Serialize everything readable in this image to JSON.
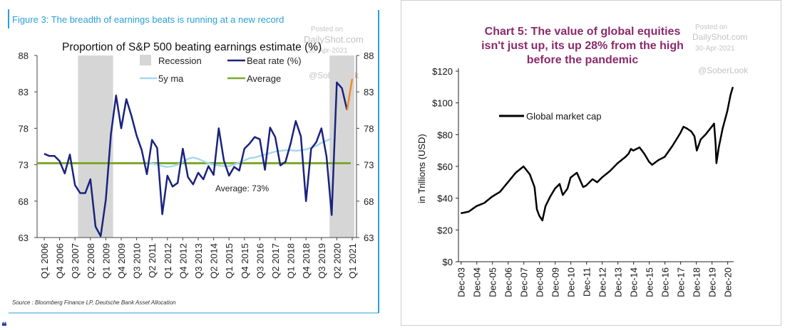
{
  "left": {
    "figure_title": "Figure 3: The breadth of earnings beats is running at a new record",
    "watermark_lines": [
      "Posted on",
      "DailyShot.com",
      "30-Apr-2021",
      "@SoberLook"
    ],
    "source": "Source : Bloomberg Finance LP, Deutsche Bank Asset Allocation",
    "annotation": "Average: 73%",
    "colors": {
      "beat": "#1a237e",
      "ma": "#a8d8ec",
      "avg": "#7caa2d",
      "recession": "#d6d6d6",
      "recent": "#f08a2c",
      "title": "#2aa0d8"
    }
  },
  "right": {
    "title_lines": [
      "Chart 5: The value of global equities",
      "isn't just up, its up 28% from the high",
      "before the pandemic"
    ],
    "watermark_lines": [
      "Posted on",
      "DailyShot.com",
      "30-Apr-2021",
      "@SoberLook"
    ],
    "colors": {
      "line": "#000000",
      "title": "#8b2a6b"
    }
  },
  "chart_data": [
    {
      "type": "line",
      "title": "Proportion of S&P 500 beating earnings estimate (%)",
      "xlabel": "",
      "ylabel": "",
      "ylim": [
        63,
        88
      ],
      "yticks": [
        63,
        68,
        73,
        78,
        83,
        88
      ],
      "xticks": [
        "Q1 2006",
        "Q4 2006",
        "Q3 2007",
        "Q2 2008",
        "Q1 2009",
        "Q4 2009",
        "Q3 2010",
        "Q2 2011",
        "Q1 2012",
        "Q4 2012",
        "Q3 2013",
        "Q2 2014",
        "Q1 2015",
        "Q4 2015",
        "Q3 2016",
        "Q2 2017",
        "Q1 2018",
        "Q4 2018",
        "Q3 2019",
        "Q2 2020",
        "Q1 2021"
      ],
      "legend": [
        "Recession",
        "Beat rate (%)",
        "5y ma",
        "Average"
      ],
      "legend_position": "top",
      "recessions": [
        [
          "Q4 2007",
          "Q2 2009"
        ],
        [
          "Q1 2020",
          "Q1 2021"
        ]
      ],
      "average_value": 73.2,
      "series": [
        {
          "name": "Beat rate (%)",
          "start": "Q1 2006",
          "values": [
            74.5,
            74.2,
            74.2,
            73.5,
            71.8,
            74.4,
            70.2,
            69.1,
            69.1,
            71.0,
            64.5,
            63.2,
            68.2,
            77.2,
            82.5,
            78.0,
            82.0,
            79.7,
            77.0,
            75.0,
            71.7,
            76.4,
            75.3,
            66.2,
            71.5,
            70.0,
            70.5,
            75.2,
            71.3,
            70.3,
            71.9,
            71.0,
            72.8,
            71.6,
            78.0,
            73.6,
            71.5,
            72.7,
            72.2,
            75.2,
            75.9,
            76.8,
            76.5,
            72.3,
            78.1,
            76.8,
            72.9,
            73.4,
            75.9,
            79.0,
            76.9,
            68.0,
            75.2,
            76.1,
            78.0,
            74.1,
            66.1,
            84.3,
            83.5,
            80.5,
            84.8
          ]
        },
        {
          "name": "5y ma",
          "start": "Q1 2011",
          "values": [
            73.3,
            73.2,
            73.0,
            72.8,
            72.7,
            72.8,
            73.0,
            73.4,
            73.8,
            74.0,
            73.8,
            73.5,
            73.2,
            73.0,
            72.9,
            72.8,
            72.8,
            73.0,
            73.3,
            73.6,
            73.9,
            74.0,
            74.2,
            74.4,
            74.6,
            74.8,
            74.9,
            75.0,
            75.0,
            74.9,
            75.0,
            75.1,
            75.3,
            75.6,
            76.0,
            76.3,
            76.6
          ]
        },
        {
          "name": "Average",
          "values": [
            73.2
          ]
        }
      ]
    },
    {
      "type": "line",
      "title": "Chart 5: The value of global equities isn't just up, its up 28% from the high before the pandemic",
      "xlabel": "",
      "ylabel": "in Trillions (USD)",
      "ylim": [
        0,
        120
      ],
      "yticks": [
        "$0",
        "$20",
        "$40",
        "$60",
        "$80",
        "$100",
        "$120"
      ],
      "xticks": [
        "Dec-03",
        "Dec-04",
        "Dec-05",
        "Dec-06",
        "Dec-07",
        "Dec-08",
        "Dec-09",
        "Dec-10",
        "Dec-11",
        "Dec-12",
        "Dec-13",
        "Dec-14",
        "Dec-15",
        "Dec-16",
        "Dec-17",
        "Dec-18",
        "Dec-19",
        "Dec-20"
      ],
      "legend": [
        "Global market cap"
      ],
      "legend_position": "upper-left",
      "series": [
        {
          "name": "Global market cap",
          "points": [
            [
              2003.9,
              30.5
            ],
            [
              2004.4,
              31.5
            ],
            [
              2004.9,
              35
            ],
            [
              2005.4,
              37
            ],
            [
              2005.9,
              41
            ],
            [
              2006.4,
              44
            ],
            [
              2006.9,
              50
            ],
            [
              2007.4,
              56
            ],
            [
              2007.9,
              60
            ],
            [
              2008.3,
              55
            ],
            [
              2008.6,
              47
            ],
            [
              2008.75,
              33
            ],
            [
              2008.9,
              29
            ],
            [
              2009.1,
              26
            ],
            [
              2009.3,
              35
            ],
            [
              2009.6,
              41
            ],
            [
              2009.9,
              46
            ],
            [
              2010.2,
              49
            ],
            [
              2010.4,
              42
            ],
            [
              2010.7,
              46
            ],
            [
              2010.9,
              53
            ],
            [
              2011.3,
              56
            ],
            [
              2011.7,
              47
            ],
            [
              2011.9,
              48
            ],
            [
              2012.3,
              52
            ],
            [
              2012.6,
              50
            ],
            [
              2012.9,
              53
            ],
            [
              2013.4,
              57
            ],
            [
              2013.9,
              62
            ],
            [
              2014.4,
              66
            ],
            [
              2014.6,
              68
            ],
            [
              2014.75,
              71
            ],
            [
              2014.9,
              70
            ],
            [
              2015.3,
              72
            ],
            [
              2015.6,
              68
            ],
            [
              2015.9,
              63
            ],
            [
              2016.1,
              61
            ],
            [
              2016.5,
              64
            ],
            [
              2016.9,
              66
            ],
            [
              2017.4,
              73
            ],
            [
              2017.9,
              81
            ],
            [
              2018.1,
              85
            ],
            [
              2018.3,
              84
            ],
            [
              2018.6,
              82
            ],
            [
              2018.8,
              79
            ],
            [
              2018.95,
              70
            ],
            [
              2019.2,
              77
            ],
            [
              2019.5,
              80
            ],
            [
              2019.9,
              85
            ],
            [
              2020.05,
              87
            ],
            [
              2020.15,
              74
            ],
            [
              2020.2,
              62
            ],
            [
              2020.35,
              72
            ],
            [
              2020.6,
              84
            ],
            [
              2020.9,
              95
            ],
            [
              2021.1,
              105
            ],
            [
              2021.25,
              110
            ]
          ]
        }
      ]
    }
  ]
}
